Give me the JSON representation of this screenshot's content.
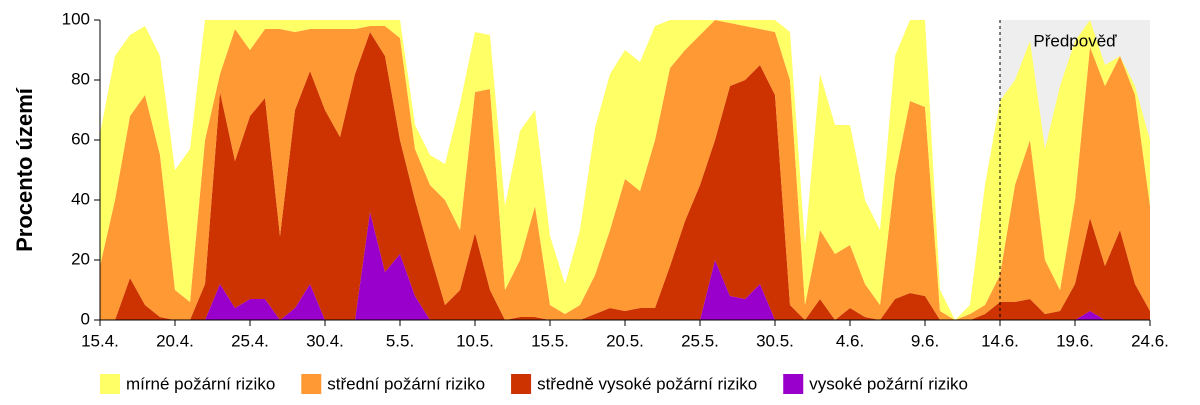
{
  "chart_data": {
    "type": "stacked-area",
    "ylabel": "Procento území",
    "categories": [
      "15.4.",
      null,
      null,
      null,
      null,
      "20.4.",
      null,
      null,
      null,
      null,
      "25.4.",
      null,
      null,
      null,
      null,
      "30.4.",
      null,
      null,
      null,
      null,
      "5.5.",
      null,
      null,
      null,
      null,
      "10.5.",
      null,
      null,
      null,
      null,
      "15.5.",
      null,
      null,
      null,
      null,
      "20.5.",
      null,
      null,
      null,
      null,
      "25.5.",
      null,
      null,
      null,
      null,
      "30.5.",
      null,
      null,
      null,
      null,
      "4.6.",
      null,
      null,
      null,
      null,
      "9.6.",
      null,
      null,
      null,
      null,
      "14.6.",
      null,
      null,
      null,
      null,
      "19.6.",
      null,
      null,
      null,
      null,
      "24.6."
    ],
    "series": [
      {
        "name": "mírné požární riziko",
        "color": "#ffff66",
        "values": [
          44,
          48,
          27,
          23,
          33,
          40,
          51,
          40,
          18,
          3,
          10,
          3,
          3,
          4,
          3,
          3,
          3,
          3,
          2,
          2,
          6,
          8,
          10,
          12,
          42,
          20,
          18,
          28,
          43,
          32,
          23,
          10,
          25,
          49,
          52,
          43,
          43,
          38,
          16,
          10,
          5,
          0,
          1,
          2,
          3,
          4,
          16,
          20,
          52,
          43,
          40,
          28,
          25,
          40,
          27,
          29,
          7,
          0,
          3,
          40,
          58,
          35,
          33,
          37,
          68,
          53,
          9,
          7,
          0,
          3,
          22
        ]
      },
      {
        "name": "střední požární riziko",
        "color": "#ff9933",
        "values": [
          18,
          40,
          54,
          70,
          54,
          10,
          6,
          48,
          6,
          44,
          22,
          23,
          69,
          26,
          14,
          27,
          36,
          15,
          2,
          10,
          34,
          17,
          23,
          35,
          20,
          47,
          67,
          10,
          19,
          37,
          5,
          2,
          5,
          13,
          26,
          44,
          39,
          56,
          66,
          57,
          50,
          40,
          21,
          18,
          12,
          21,
          75,
          5,
          23,
          22,
          21,
          11,
          5,
          41,
          64,
          63,
          3,
          0,
          2,
          3,
          9,
          39,
          53,
          18,
          7,
          28,
          57,
          60,
          58,
          63,
          35
        ]
      },
      {
        "name": "středně vysoké požární riziko",
        "color": "#cc3300",
        "values": [
          0,
          0,
          14,
          5,
          1,
          0,
          0,
          12,
          64,
          49,
          61,
          67,
          28,
          66,
          71,
          70,
          61,
          82,
          60,
          72,
          38,
          32,
          22,
          5,
          10,
          29,
          10,
          0,
          1,
          1,
          0,
          0,
          0,
          2,
          4,
          3,
          4,
          4,
          18,
          33,
          45,
          40,
          70,
          73,
          73,
          75,
          5,
          0,
          7,
          0,
          4,
          1,
          0,
          7,
          9,
          8,
          0,
          0,
          0,
          2,
          6,
          6,
          7,
          2,
          3,
          12,
          31,
          18,
          30,
          12,
          3
        ]
      },
      {
        "name": "vysoké požární riziko",
        "color": "#9900cc",
        "values": [
          0,
          0,
          0,
          0,
          0,
          0,
          0,
          0,
          12,
          4,
          7,
          7,
          0,
          4,
          12,
          0,
          0,
          0,
          36,
          16,
          22,
          8,
          0,
          0,
          0,
          0,
          0,
          0,
          0,
          0,
          0,
          0,
          0,
          0,
          0,
          0,
          0,
          0,
          0,
          0,
          0,
          20,
          8,
          7,
          12,
          0,
          0,
          0,
          0,
          0,
          0,
          0,
          0,
          0,
          0,
          0,
          0,
          0,
          0,
          0,
          0,
          0,
          0,
          0,
          0,
          0,
          3,
          0,
          0,
          0,
          0
        ]
      }
    ],
    "ylim": [
      0,
      100
    ],
    "yticks": [
      0,
      20,
      40,
      60,
      80,
      100
    ],
    "forecast": {
      "label": "Předpověď",
      "start": "14.6."
    },
    "legend": "bottom"
  }
}
